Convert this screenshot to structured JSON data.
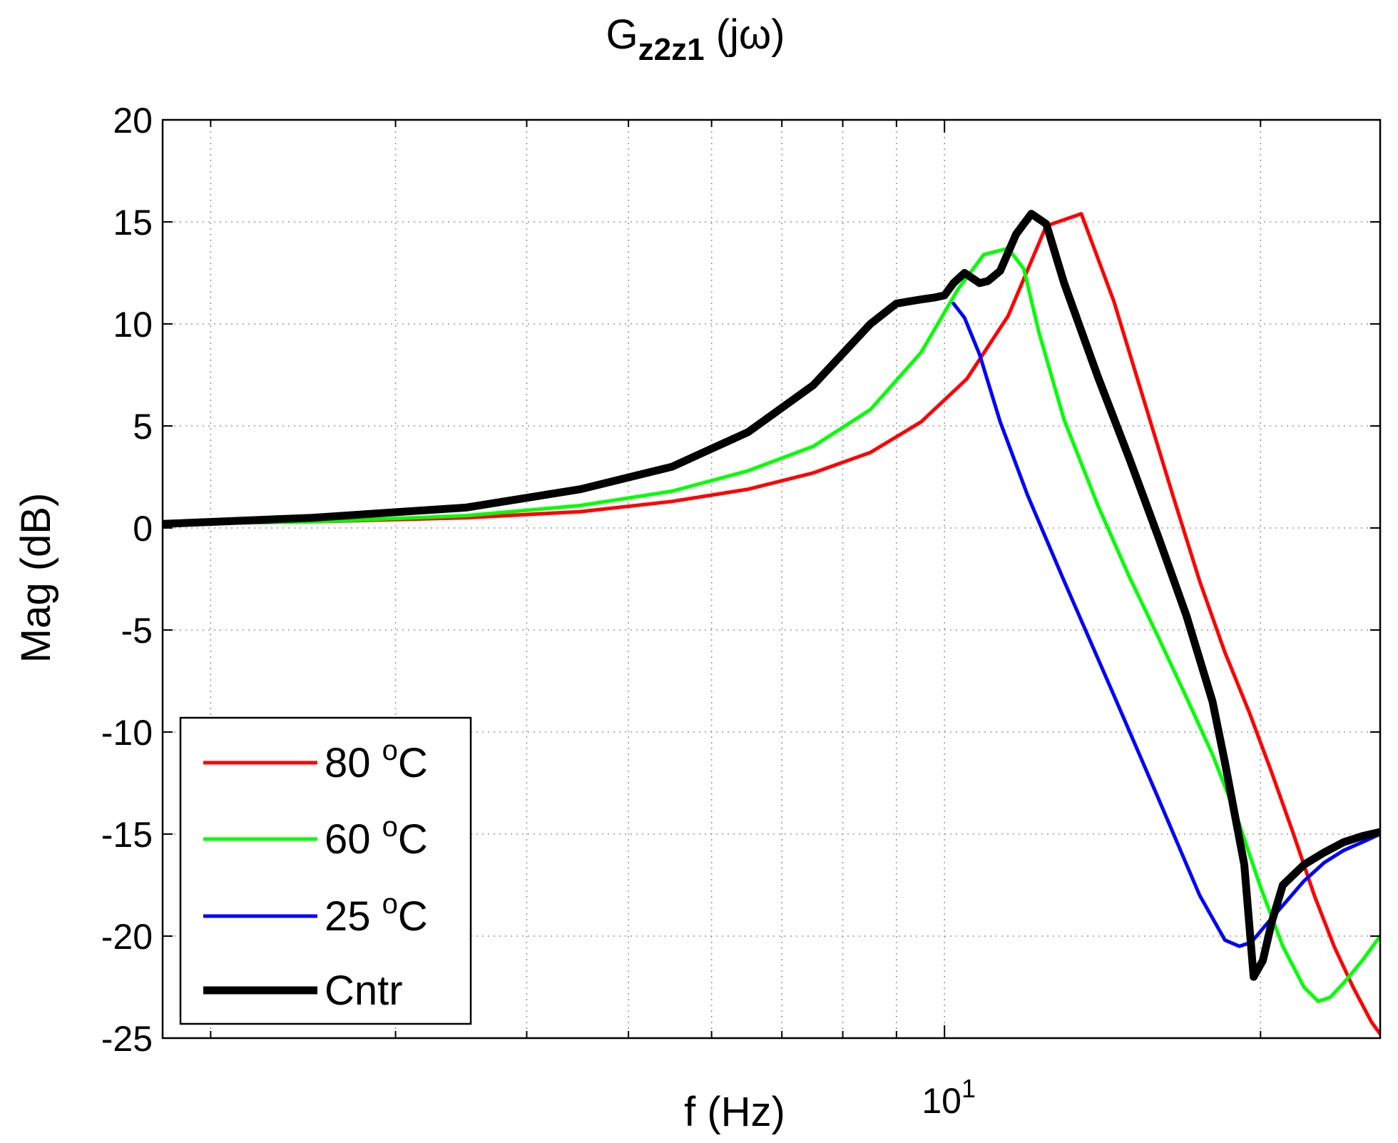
{
  "chart_data": {
    "type": "line",
    "title_main": "G",
    "title_sub": "z2z1",
    "title_suffix": " (jω)",
    "xlabel": "f (Hz)",
    "ylabel": "Mag (dB)",
    "xscale": "log",
    "xlim": [
      1.8,
      26
    ],
    "ylim": [
      -25,
      20
    ],
    "grid": true,
    "legend_position": "bottom-left",
    "y_ticks": [
      20,
      15,
      10,
      5,
      0,
      -5,
      -10,
      -15,
      -20,
      -25
    ],
    "y_tick_labels": [
      "20",
      "15",
      "10",
      "5",
      "0",
      "-5",
      "-10",
      "-15",
      "-20",
      "-25"
    ],
    "x_major_tick": 10,
    "x_major_tick_base": "10",
    "x_major_tick_exp": "1",
    "x_minor_ticks": [
      2,
      3,
      4,
      5,
      6,
      7,
      8,
      9,
      20
    ],
    "series": [
      {
        "name": "80 °C",
        "label_num": "80 ",
        "label_sup": "o",
        "label_unit": "C",
        "color": "#ff0000",
        "width": 5,
        "x": [
          1.8,
          2.5,
          3.5,
          4.5,
          5.5,
          6.5,
          7.5,
          8.5,
          9.5,
          10.5,
          11.5,
          12.5,
          13.5,
          14.5,
          15.5,
          16.5,
          17.5,
          18.5,
          19.5,
          20.5,
          21.5,
          22.5,
          23.5,
          24.5,
          25.5,
          26
        ],
        "y": [
          0.2,
          0.3,
          0.5,
          0.8,
          1.3,
          1.9,
          2.7,
          3.7,
          5.2,
          7.3,
          10.4,
          14.8,
          15.4,
          11.1,
          6.2,
          1.6,
          -2.6,
          -6.1,
          -9.0,
          -12.0,
          -15.0,
          -18.0,
          -20.5,
          -22.5,
          -24.2,
          -24.8
        ]
      },
      {
        "name": "60 °C",
        "label_num": "60 ",
        "label_sup": "o",
        "label_unit": "C",
        "color": "#00ff00",
        "width": 5,
        "x": [
          1.8,
          2.5,
          3.5,
          4.5,
          5.5,
          6.5,
          7.5,
          8.5,
          9.5,
          10.3,
          10.9,
          11.5,
          11.9,
          12.3,
          13.0,
          14.0,
          15.0,
          16.0,
          17.0,
          18.0,
          19.0,
          20.0,
          21.0,
          22.0,
          22.7,
          23.3,
          24.0,
          25.0,
          26.0
        ],
        "y": [
          0.2,
          0.3,
          0.6,
          1.1,
          1.8,
          2.8,
          4.0,
          5.8,
          8.6,
          11.7,
          13.4,
          13.7,
          12.7,
          9.6,
          5.3,
          1.1,
          -2.4,
          -5.4,
          -8.3,
          -11.1,
          -14.2,
          -17.6,
          -20.5,
          -22.5,
          -23.2,
          -23.0,
          -22.3,
          -21.2,
          -20.0
        ]
      },
      {
        "name": "25 °C",
        "label_num": "25 ",
        "label_sup": "o",
        "label_unit": "C",
        "color": "#0000ff",
        "width": 5,
        "x": [
          10.2,
          10.45,
          10.8,
          11.3,
          12.0,
          13.0,
          14.5,
          16.0,
          17.5,
          18.5,
          19.1,
          19.6,
          20.2,
          21.0,
          22.0,
          23.0,
          24.0,
          25.0,
          26.0
        ],
        "y": [
          11.0,
          10.3,
          8.5,
          5.2,
          1.6,
          -2.6,
          -8.2,
          -13.3,
          -18.0,
          -20.2,
          -20.5,
          -20.3,
          -19.5,
          -18.5,
          -17.3,
          -16.4,
          -15.8,
          -15.4,
          -15.0
        ]
      },
      {
        "name": "Cntr",
        "label_num": "Cntr",
        "label_sup": "",
        "label_unit": "",
        "color": "#000000",
        "width": 11,
        "x": [
          1.8,
          2.5,
          3.5,
          4.5,
          5.5,
          6.5,
          7.5,
          8.5,
          9.0,
          9.5,
          9.8,
          10.0,
          10.2,
          10.45,
          10.8,
          11.0,
          11.3,
          11.7,
          12.1,
          12.5,
          13.0,
          14.0,
          15.0,
          16.0,
          17.0,
          18.0,
          18.5,
          19.3,
          19.7,
          20.1,
          20.5,
          21.0,
          22.0,
          23.0,
          24.0,
          25.0,
          26.0
        ],
        "y": [
          0.2,
          0.5,
          1.0,
          1.9,
          3.0,
          4.7,
          7.0,
          10.0,
          11.0,
          11.2,
          11.3,
          11.4,
          12.0,
          12.5,
          12.0,
          12.1,
          12.6,
          14.4,
          15.4,
          14.9,
          12.0,
          7.4,
          3.4,
          -0.5,
          -4.3,
          -8.5,
          -11.5,
          -16.5,
          -22.0,
          -21.2,
          -19.3,
          -17.5,
          -16.5,
          -15.9,
          -15.4,
          -15.1,
          -14.9
        ]
      }
    ]
  }
}
